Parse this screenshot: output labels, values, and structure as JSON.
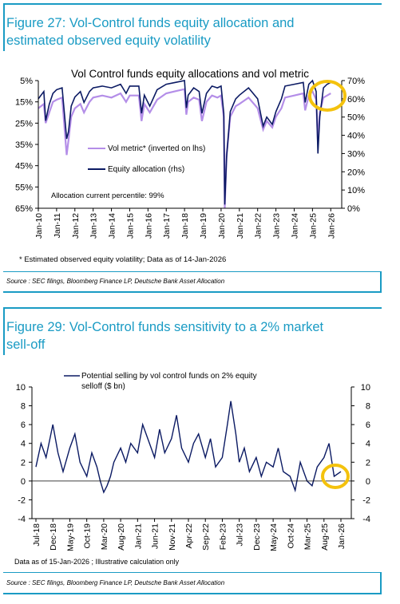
{
  "figure1": {
    "title_line1": "Figure 27: Vol-Control funds equity allocation and",
    "title_line2": "estimated observed equity volatility",
    "footnote": "* Estimated observed equity volatility;   Data as of 14-Jan-2026",
    "source": "Source : SEC filings, Bloomberg Finance LP, Deutsche Bank Asset Allocation"
  },
  "figure2": {
    "title_line1": "Figure 29: Vol-Control funds sensitivity to a 2% market",
    "title_line2": "sell-off",
    "footnote": "Data as of 15-Jan-2026    ; Illustrative calculation only",
    "source": "Source : SEC filings, Bloomberg Finance LP, Deutsche Bank Asset Allocation"
  },
  "chart_data": [
    {
      "type": "line",
      "title": "Vol Control funds equity allocations and vol metric",
      "annotation": "Allocation current percentile: 99%",
      "categories": [
        "Jan-10",
        "Jan-11",
        "Jan-12",
        "Jan-13",
        "Jan-14",
        "Jan-15",
        "Jan-16",
        "Jan-17",
        "Jan-18",
        "Jan-19",
        "Jan-20",
        "Jan-21",
        "Jan-22",
        "Jan-23",
        "Jan-24",
        "Jan-25",
        "Jan-26"
      ],
      "left_axis": {
        "ticks": [
          "5%",
          "15%",
          "25%",
          "35%",
          "45%",
          "55%",
          "65%"
        ],
        "range": [
          5,
          65
        ],
        "inverted": true
      },
      "right_axis": {
        "ticks": [
          "0%",
          "10%",
          "20%",
          "30%",
          "40%",
          "50%",
          "60%",
          "70%"
        ],
        "range": [
          0,
          70
        ]
      },
      "legend_position": "center-left",
      "highlight": "circle at end of series (Jan-26)",
      "series": [
        {
          "name": "Vol metric* (inverted on lhs)",
          "color": "#b48ee8",
          "axis": "left",
          "x": [
            2010.0,
            2010.3,
            2010.4,
            2010.6,
            2010.8,
            2011.0,
            2011.3,
            2011.55,
            2011.65,
            2011.8,
            2012.0,
            2012.3,
            2012.5,
            2012.8,
            2013.0,
            2013.5,
            2014.0,
            2014.5,
            2014.8,
            2015.0,
            2015.5,
            2015.65,
            2015.8,
            2016.1,
            2016.5,
            2017.0,
            2017.5,
            2018.0,
            2018.1,
            2018.2,
            2018.5,
            2018.8,
            2018.95,
            2019.2,
            2019.5,
            2019.8,
            2020.0,
            2020.15,
            2020.2,
            2020.3,
            2020.5,
            2020.8,
            2021.0,
            2021.5,
            2022.0,
            2022.3,
            2022.5,
            2022.8,
            2023.0,
            2023.3,
            2023.5,
            2024.0,
            2024.5,
            2024.6,
            2024.8,
            2025.0,
            2025.2,
            2025.3,
            2025.4,
            2025.6,
            2025.8,
            2026.0
          ],
          "values": [
            18,
            16,
            25,
            20,
            15,
            14,
            13,
            40,
            33,
            22,
            18,
            16,
            20,
            15,
            13,
            12,
            13,
            11,
            15,
            12,
            12,
            24,
            16,
            20,
            14,
            11,
            10,
            9,
            21,
            15,
            13,
            14,
            24,
            15,
            12,
            13,
            12,
            22,
            65,
            40,
            22,
            17,
            16,
            13,
            18,
            28,
            24,
            27,
            22,
            18,
            13,
            12,
            11,
            19,
            12,
            10,
            14,
            34,
            20,
            13,
            12,
            11
          ]
        },
        {
          "name": "Equity allocation (rhs)",
          "color": "#0b1a63",
          "axis": "right",
          "x": [
            2010.0,
            2010.3,
            2010.4,
            2010.6,
            2010.8,
            2011.0,
            2011.3,
            2011.55,
            2011.65,
            2011.8,
            2012.0,
            2012.3,
            2012.5,
            2012.8,
            2013.0,
            2013.5,
            2014.0,
            2014.5,
            2014.8,
            2015.0,
            2015.5,
            2015.65,
            2015.8,
            2016.1,
            2016.5,
            2017.0,
            2017.5,
            2018.0,
            2018.1,
            2018.2,
            2018.5,
            2018.8,
            2018.95,
            2019.2,
            2019.5,
            2019.8,
            2020.0,
            2020.15,
            2020.2,
            2020.3,
            2020.5,
            2020.8,
            2021.0,
            2021.5,
            2022.0,
            2022.3,
            2022.5,
            2022.8,
            2023.0,
            2023.3,
            2023.5,
            2024.0,
            2024.5,
            2024.6,
            2024.8,
            2025.0,
            2025.2,
            2025.3,
            2025.4,
            2025.6,
            2025.8,
            2026.0
          ],
          "values": [
            60,
            64,
            48,
            57,
            63,
            65,
            66,
            38,
            42,
            56,
            61,
            64,
            58,
            64,
            66,
            67,
            66,
            68,
            63,
            67,
            67,
            52,
            62,
            56,
            65,
            68,
            69,
            70,
            55,
            62,
            66,
            64,
            52,
            63,
            67,
            66,
            67,
            52,
            2,
            28,
            53,
            60,
            62,
            66,
            60,
            45,
            50,
            46,
            53,
            60,
            67,
            68,
            69,
            58,
            68,
            70,
            64,
            30,
            50,
            66,
            68,
            69
          ]
        }
      ]
    },
    {
      "type": "line",
      "title": "",
      "categories": [
        "Jul-18",
        "Dec-18",
        "May-19",
        "Oct-19",
        "Mar-20",
        "Aug-20",
        "Jan-21",
        "Jun-21",
        "Nov-21",
        "Apr-22",
        "Sep-22",
        "Feb-23",
        "Jul-23",
        "Dec-23",
        "May-24",
        "Oct-24",
        "Mar-25",
        "Aug-25",
        "Jan-26"
      ],
      "ylim": [
        -4,
        10
      ],
      "yticks": [
        "10",
        "8",
        "6",
        "4",
        "2",
        "0",
        "-2",
        "-4"
      ],
      "legend_position": "top-center",
      "highlight": "circle at end of series (Jan-26)",
      "series": [
        {
          "name": "Potential selling by vol control funds on 2% equity selloff ($ bn)",
          "color": "#0b1a63",
          "x": [
            0,
            0.3,
            0.6,
            1.0,
            1.3,
            1.6,
            2.0,
            2.3,
            2.6,
            3.0,
            3.3,
            3.6,
            3.8,
            4.0,
            4.2,
            4.4,
            4.6,
            5.0,
            5.3,
            5.6,
            6.0,
            6.3,
            6.6,
            7.0,
            7.3,
            7.6,
            8.0,
            8.3,
            8.6,
            9.0,
            9.3,
            9.6,
            10.0,
            10.3,
            10.6,
            11.0,
            11.3,
            11.5,
            11.8,
            12.0,
            12.3,
            12.6,
            13.0,
            13.3,
            13.6,
            14.0,
            14.3,
            14.6,
            15.0,
            15.3,
            15.6,
            16.0,
            16.3,
            16.6,
            17.0,
            17.3,
            17.6,
            18.0
          ],
          "values": [
            1.5,
            4.0,
            2.5,
            6.0,
            3.0,
            1.0,
            3.5,
            5.0,
            2.0,
            0.5,
            3.0,
            1.5,
            0.0,
            -1.2,
            -0.5,
            0.5,
            2.0,
            3.5,
            2.0,
            4.0,
            3.0,
            6.0,
            4.5,
            2.5,
            5.5,
            3.0,
            4.5,
            7.0,
            3.5,
            2.0,
            4.0,
            5.0,
            2.5,
            4.5,
            1.5,
            2.5,
            6.0,
            8.5,
            5.0,
            2.0,
            3.5,
            1.0,
            2.5,
            0.5,
            2.0,
            1.5,
            3.5,
            1.0,
            0.5,
            -1.0,
            2.0,
            0.0,
            -0.5,
            1.5,
            2.5,
            4.0,
            0.5,
            1.0
          ]
        }
      ]
    }
  ]
}
